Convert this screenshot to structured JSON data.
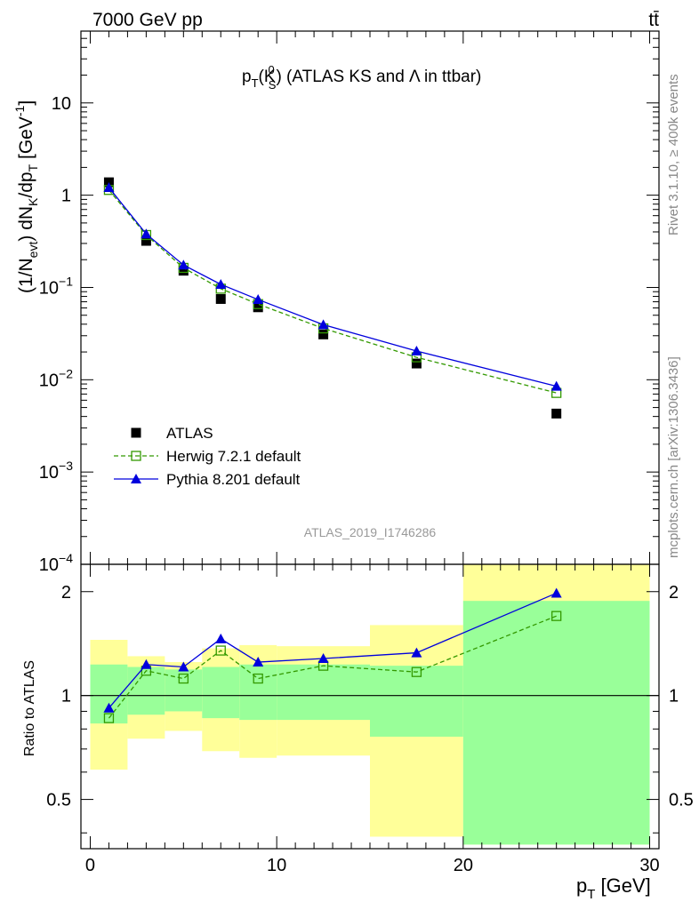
{
  "header": {
    "left": "7000 GeV pp",
    "right": "tt̄"
  },
  "side_labels": {
    "rivet": "Rivet 3.1.10, ≥ 400k events",
    "mcplots": "mcplots.cern.ch [arXiv:1306.3436]"
  },
  "watermark": "ATLAS_2019_I1746286",
  "chart_data": [
    {
      "type": "scatter",
      "panel": "main",
      "title": "pT(K0S) (ATLAS KS and Λ in ttbar)",
      "ylabel": "(1/Nevt) dNK/dpT [GeV-1]",
      "yscale": "log",
      "ylim": [
        0.0001,
        60
      ],
      "xlim": [
        -0.5,
        30.5
      ],
      "x": [
        1,
        3,
        5,
        7,
        9,
        12.5,
        17.5,
        25
      ],
      "series": [
        {
          "name": "ATLAS",
          "values": [
            1.38,
            0.32,
            0.152,
            0.075,
            0.061,
            0.031,
            0.015,
            0.0043
          ],
          "color": "#000000",
          "marker": "filled-square"
        },
        {
          "name": "Herwig 7.2.1 default",
          "values": [
            1.14,
            0.37,
            0.163,
            0.097,
            0.066,
            0.036,
            0.0175,
            0.0072
          ],
          "color": "#339900",
          "marker": "open-square",
          "line": "dashed"
        },
        {
          "name": "Pythia 8.201 default",
          "values": [
            1.21,
            0.38,
            0.175,
            0.108,
            0.074,
            0.0395,
            0.0205,
            0.0085
          ],
          "color": "#0000dd",
          "marker": "triangle",
          "line": "solid"
        }
      ],
      "legend": "bottom-left",
      "y_ticks": [
        {
          "v": 0.0001,
          "b": "10",
          "e": "−4"
        },
        {
          "v": 0.001,
          "b": "10",
          "e": "−3"
        },
        {
          "v": 0.01,
          "b": "10",
          "e": "−2"
        },
        {
          "v": 0.1,
          "b": "10",
          "e": "−1"
        },
        {
          "v": 1,
          "b": "1",
          "e": ""
        },
        {
          "v": 10,
          "b": "10",
          "e": ""
        }
      ]
    },
    {
      "type": "line",
      "panel": "ratio",
      "ylabel": "Ratio to ATLAS",
      "xlabel": "pT [GeV]",
      "yscale": "log",
      "ylim": [
        0.36,
        2.4
      ],
      "xlim": [
        -0.5,
        30.5
      ],
      "x_ticks": [
        0,
        10,
        20,
        30
      ],
      "y_ticks": [
        0.5,
        1,
        2
      ],
      "x": [
        1,
        3,
        5,
        7,
        9,
        12.5,
        17.5,
        25
      ],
      "bins": [
        [
          0,
          2
        ],
        [
          2,
          4
        ],
        [
          4,
          6
        ],
        [
          6,
          8
        ],
        [
          8,
          10
        ],
        [
          10,
          15
        ],
        [
          15,
          20
        ],
        [
          20,
          30
        ]
      ],
      "band_stat": [
        [
          0.83,
          1.23
        ],
        [
          0.88,
          1.21
        ],
        [
          0.9,
          1.19
        ],
        [
          0.86,
          1.21
        ],
        [
          0.85,
          1.23
        ],
        [
          0.85,
          1.23
        ],
        [
          0.76,
          1.22
        ],
        [
          0.37,
          1.88
        ]
      ],
      "band_total": [
        [
          0.61,
          1.45
        ],
        [
          0.75,
          1.3
        ],
        [
          0.79,
          1.25
        ],
        [
          0.69,
          1.37
        ],
        [
          0.66,
          1.4
        ],
        [
          0.67,
          1.39
        ],
        [
          0.39,
          1.6
        ],
        [
          0.37,
          2.4
        ]
      ],
      "series": [
        {
          "name": "Herwig 7.2.1 default",
          "values": [
            0.86,
            1.18,
            1.12,
            1.35,
            1.12,
            1.22,
            1.17,
            1.7
          ],
          "color": "#339900"
        },
        {
          "name": "Pythia 8.201 default",
          "values": [
            0.92,
            1.23,
            1.21,
            1.46,
            1.25,
            1.28,
            1.33,
            1.98
          ],
          "color": "#0000dd"
        }
      ],
      "colors": {
        "stat_band": "#99ff99",
        "total_band": "#ffff99"
      }
    }
  ]
}
